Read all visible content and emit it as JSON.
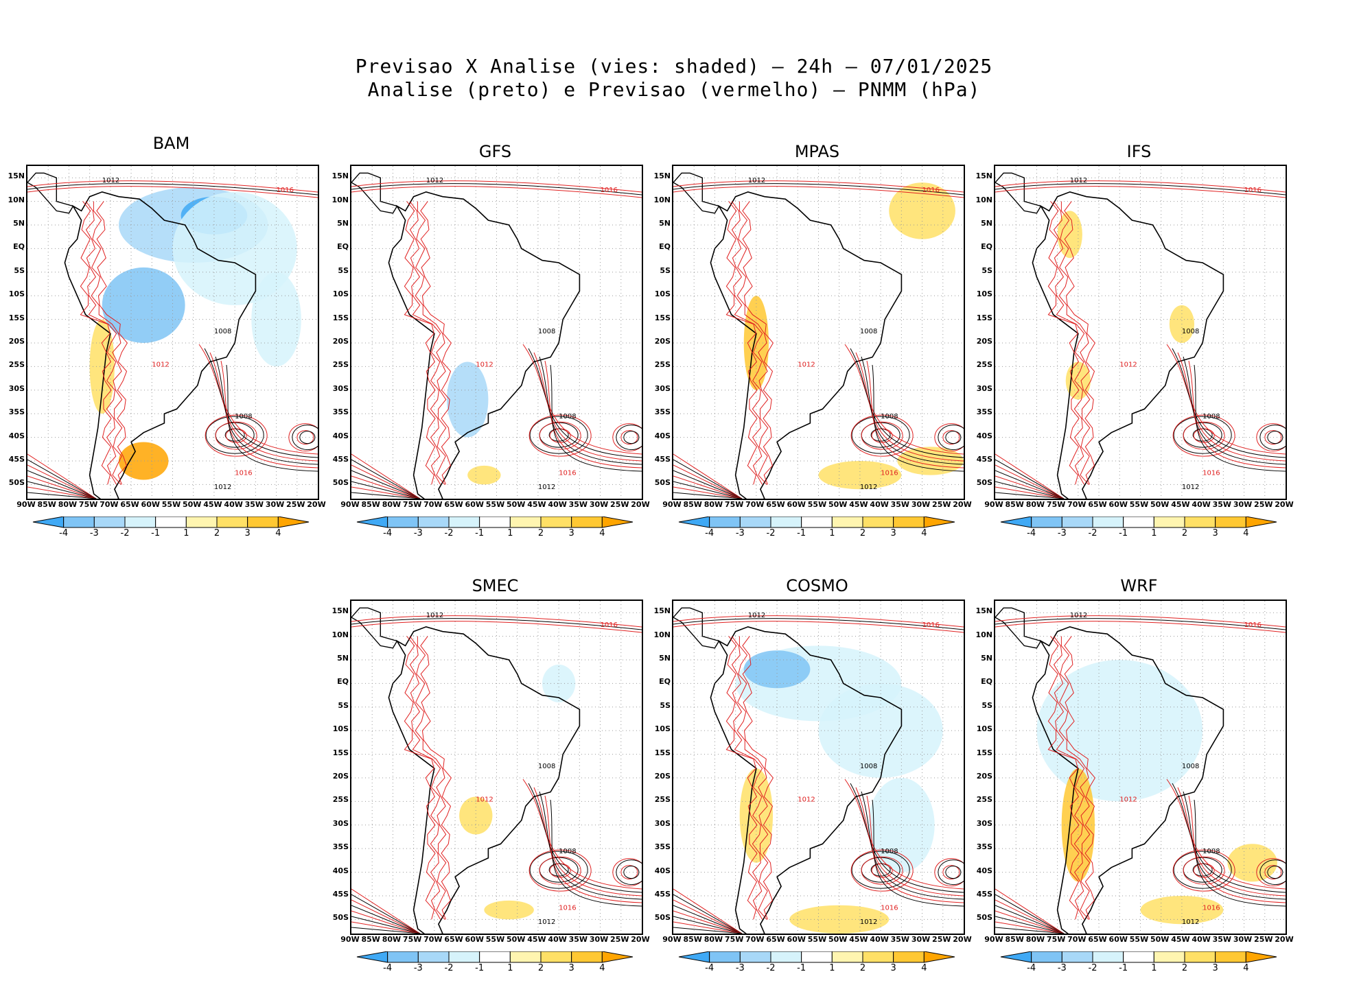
{
  "title": {
    "line1": "Previsao X Analise (vies: shaded) – 24h – 07/01/2025",
    "line2": "Analise (preto) e Previsao (vermelho) – PNMM (hPa)"
  },
  "lat_ticks": [
    "15N",
    "10N",
    "5N",
    "EQ",
    "5S",
    "10S",
    "15S",
    "20S",
    "25S",
    "30S",
    "35S",
    "40S",
    "45S",
    "50S"
  ],
  "lon_ticks": [
    "90W",
    "85W",
    "80W",
    "75W",
    "70W",
    "65W",
    "60W",
    "55W",
    "50W",
    "45W",
    "40W",
    "35W",
    "30W",
    "25W",
    "20W"
  ],
  "colorbar_ticks": [
    "-4",
    "-3",
    "-2",
    "-1",
    "1",
    "2",
    "3",
    "4"
  ],
  "colors": {
    "analysis": "#000000",
    "forecast": "#e02020",
    "bias_levels": [
      "#3fa9f5",
      "#7fc4f5",
      "#a8d8f8",
      "#d6f3fb",
      "#ffffff",
      "#fff5b0",
      "#ffe066",
      "#ffc833",
      "#ffa500"
    ]
  },
  "panels": [
    {
      "name": "BAM",
      "isobars": [
        "1012",
        "1016",
        "1008",
        "1012",
        "1008",
        "1016",
        "1012"
      ]
    },
    {
      "name": "GFS",
      "isobars": [
        "1012",
        "1016",
        "1008",
        "1012",
        "1008",
        "1016",
        "1012"
      ]
    },
    {
      "name": "MPAS",
      "isobars": [
        "1012",
        "1016",
        "1008",
        "1012",
        "1008",
        "1016",
        "1012"
      ]
    },
    {
      "name": "IFS",
      "isobars": [
        "1012",
        "1016",
        "1008",
        "1012",
        "1008",
        "1016",
        "1012"
      ]
    },
    {
      "name": "SMEC",
      "isobars": [
        "1012",
        "1016",
        "1008",
        "1012",
        "1008",
        "1016",
        "1012"
      ]
    },
    {
      "name": "COSMO",
      "isobars": [
        "1012",
        "1016",
        "1008",
        "1012",
        "1008",
        "1016",
        "1012"
      ]
    },
    {
      "name": "WRF",
      "isobars": [
        "1012",
        "1016",
        "1008",
        "1012",
        "1008",
        "1016",
        "1012"
      ]
    }
  ]
}
